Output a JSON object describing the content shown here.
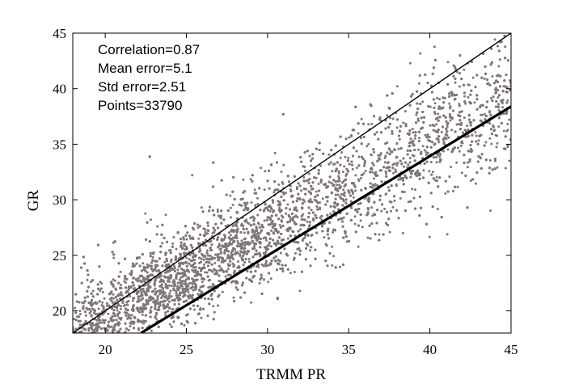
{
  "chart_data": {
    "type": "scatter",
    "title": "",
    "xlabel": "TRMM PR",
    "ylabel": "GR",
    "xlim": [
      18,
      45
    ],
    "ylim": [
      18,
      45
    ],
    "x_ticks": [
      20,
      25,
      30,
      35,
      40,
      45
    ],
    "y_ticks": [
      20,
      25,
      30,
      35,
      40,
      45
    ],
    "grid": false,
    "point_color": "#7f7676",
    "annotations": [
      "Correlation=0.87",
      "Mean error=5.1",
      "Std error=2.51",
      "Points=33790"
    ],
    "reference_lines": [
      {
        "kind": "one-to-one",
        "from": [
          18,
          18
        ],
        "to": [
          45,
          45
        ],
        "color": "#000000"
      },
      {
        "kind": "fit",
        "from": [
          22.2,
          18
        ],
        "to": [
          45,
          38.4
        ],
        "color": "#000000"
      }
    ],
    "cloud": {
      "x_range": [
        18,
        45
      ],
      "center_line": [
        [
          18.5,
          18.2
        ],
        [
          45,
          38.9
        ]
      ],
      "spread_note": "dense band between the two lines, widening toward high values",
      "points_shown": 33790
    }
  }
}
